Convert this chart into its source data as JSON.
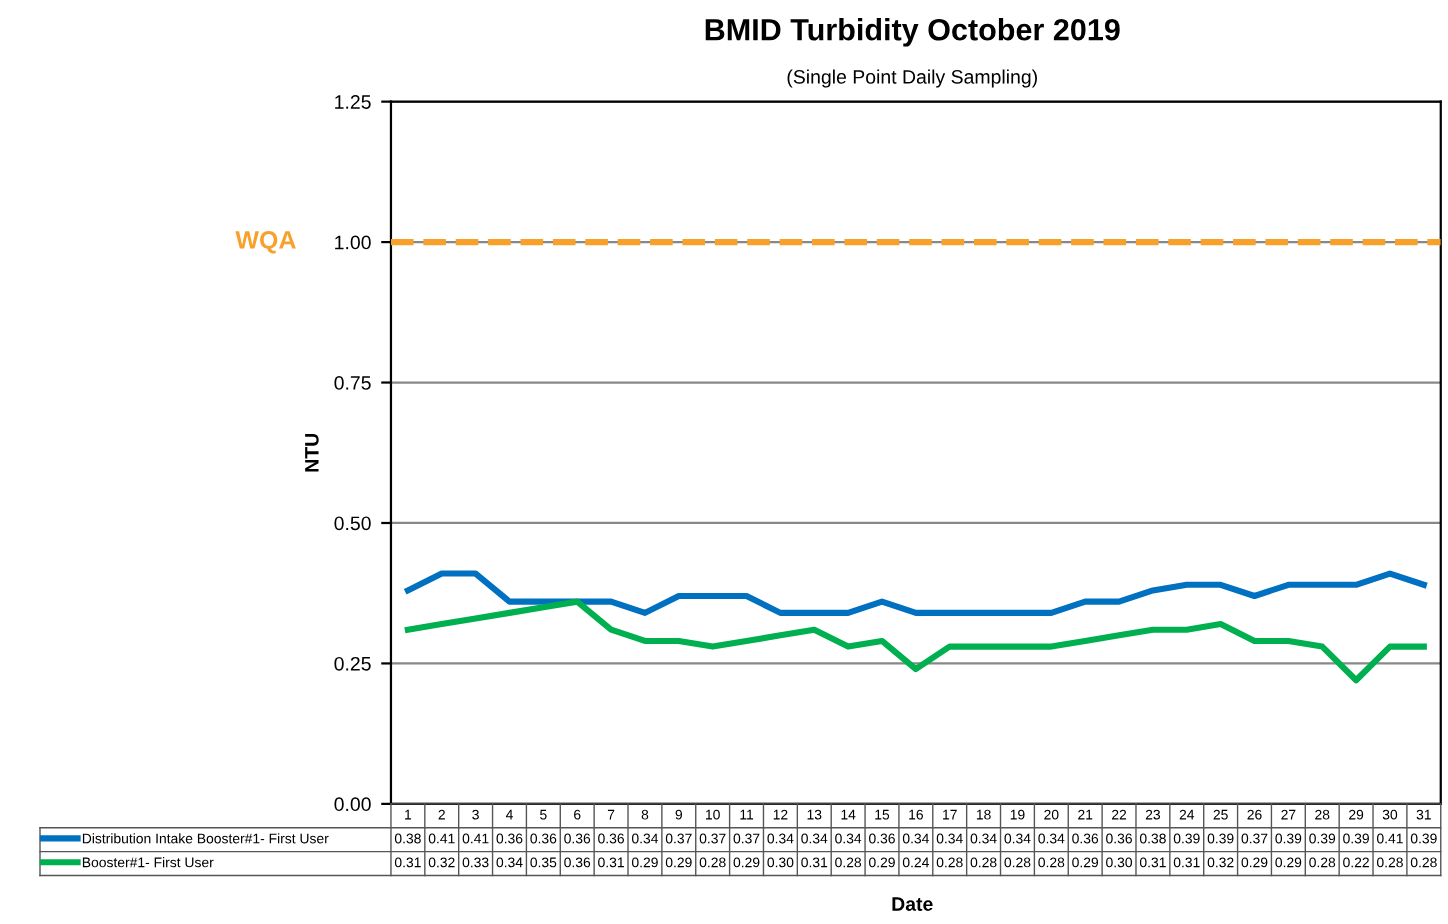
{
  "chart_data": {
    "type": "line",
    "title": "BMID Turbidity October 2019",
    "subtitle": "(Single Point Daily Sampling)",
    "xlabel": "Date",
    "ylabel": "NTU",
    "categories": [
      "1",
      "2",
      "3",
      "4",
      "5",
      "6",
      "7",
      "8",
      "9",
      "10",
      "11",
      "12",
      "13",
      "14",
      "15",
      "16",
      "17",
      "18",
      "19",
      "20",
      "21",
      "22",
      "23",
      "24",
      "25",
      "26",
      "27",
      "28",
      "29",
      "30",
      "31"
    ],
    "series": [
      {
        "name": "Distribution Intake Booster#1- First User",
        "color": "#0070c0",
        "values": [
          0.38,
          0.41,
          0.41,
          0.36,
          0.36,
          0.36,
          0.36,
          0.34,
          0.37,
          0.37,
          0.37,
          0.34,
          0.34,
          0.34,
          0.36,
          0.34,
          0.34,
          0.34,
          0.34,
          0.34,
          0.36,
          0.36,
          0.38,
          0.39,
          0.39,
          0.37,
          0.39,
          0.39,
          0.39,
          0.41,
          0.39
        ],
        "value_labels": [
          "0.38",
          "0.41",
          "0.41",
          "0.36",
          "0.36",
          "0.36",
          "0.36",
          "0.34",
          "0.37",
          "0.37",
          "0.37",
          "0.34",
          "0.34",
          "0.34",
          "0.36",
          "0.34",
          "0.34",
          "0.34",
          "0.34",
          "0.34",
          "0.36",
          "0.36",
          "0.38",
          "0.39",
          "0.39",
          "0.37",
          "0.39",
          "0.39",
          "0.39",
          "0.41",
          "0.39"
        ]
      },
      {
        "name": "Booster#1- First User",
        "color": "#00b050",
        "values": [
          0.31,
          0.32,
          0.33,
          0.34,
          0.35,
          0.36,
          0.31,
          0.29,
          0.29,
          0.28,
          0.29,
          0.3,
          0.31,
          0.28,
          0.29,
          0.24,
          0.28,
          0.28,
          0.28,
          0.28,
          0.29,
          0.3,
          0.31,
          0.31,
          0.32,
          0.29,
          0.29,
          0.28,
          0.22,
          0.28,
          0.28
        ],
        "value_labels": [
          "0.31",
          "0.32",
          "0.33",
          "0.34",
          "0.35",
          "0.36",
          "0.31",
          "0.29",
          "0.29",
          "0.28",
          "0.29",
          "0.30",
          "0.31",
          "0.28",
          "0.29",
          "0.24",
          "0.28",
          "0.28",
          "0.28",
          "0.28",
          "0.29",
          "0.30",
          "0.31",
          "0.31",
          "0.32",
          "0.29",
          "0.29",
          "0.28",
          "0.22",
          "0.28",
          "0.28"
        ]
      }
    ],
    "ylim": [
      0,
      1.25
    ],
    "yticks": [
      "0.00",
      "0.25",
      "0.50",
      "0.75",
      "1.00",
      "1.25"
    ],
    "ref_lines": [
      {
        "axis": "y",
        "value": 1.0,
        "label": "WQA",
        "color": "#f7a12b",
        "line_style": "dashed"
      }
    ],
    "grid": "y",
    "legend": "bottom",
    "marker": "none",
    "line_style": "solid"
  }
}
